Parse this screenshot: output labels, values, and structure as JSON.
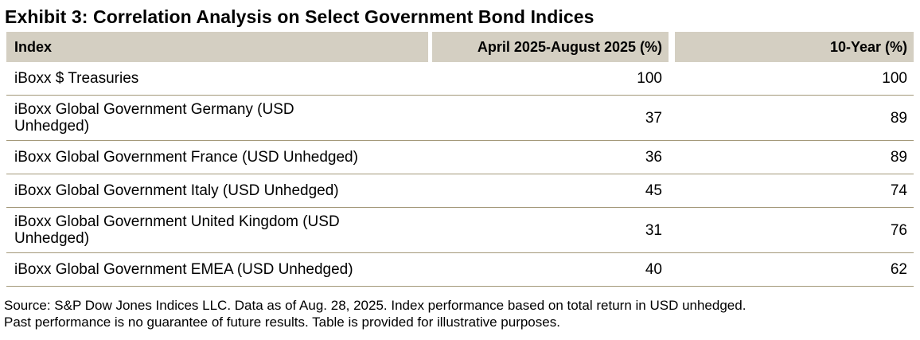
{
  "title": "Exhibit 3: Correlation Analysis on Select Government Bond Indices",
  "table": {
    "columns": [
      {
        "label": "Index"
      },
      {
        "label": "April 2025-August 2025 (%)"
      },
      {
        "label": "10-Year (%)"
      }
    ],
    "rows": [
      {
        "index": "iBoxx $ Treasuries",
        "apr_aug_2025": "100",
        "ten_year": "100"
      },
      {
        "index": "iBoxx Global Government Germany (USD\nUnhedged)",
        "apr_aug_2025": "37",
        "ten_year": "89"
      },
      {
        "index": "iBoxx Global Government France (USD Unhedged)",
        "apr_aug_2025": "36",
        "ten_year": "89"
      },
      {
        "index": "iBoxx Global Government Italy (USD Unhedged)",
        "apr_aug_2025": "45",
        "ten_year": "74"
      },
      {
        "index": "iBoxx Global Government United Kingdom (USD\nUnhedged)",
        "apr_aug_2025": "31",
        "ten_year": "76"
      },
      {
        "index": "iBoxx Global Government EMEA (USD Unhedged)",
        "apr_aug_2025": "40",
        "ten_year": "62"
      }
    ]
  },
  "footnote": {
    "line1": "Source: S&P Dow Jones Indices LLC. Data as of Aug. 28, 2025. Index performance based on total return in USD unhedged.",
    "line2": "Past performance is no guarantee of future results. Table is provided for illustrative purposes."
  },
  "colors": {
    "header_background": "#d4cfc2",
    "row_separator": "#a39879",
    "text": "#000000",
    "background": "#ffffff"
  },
  "chart_data": {
    "type": "table",
    "title": "Exhibit 3: Correlation Analysis on Select Government Bond Indices",
    "columns": [
      "Index",
      "April 2025-August 2025 (%)",
      "10-Year (%)"
    ],
    "rows": [
      [
        "iBoxx $ Treasuries",
        100,
        100
      ],
      [
        "iBoxx Global Government Germany (USD Unhedged)",
        37,
        89
      ],
      [
        "iBoxx Global Government France (USD Unhedged)",
        36,
        89
      ],
      [
        "iBoxx Global Government Italy (USD Unhedged)",
        45,
        74
      ],
      [
        "iBoxx Global Government United Kingdom (USD Unhedged)",
        31,
        76
      ],
      [
        "iBoxx Global Government EMEA (USD Unhedged)",
        40,
        62
      ]
    ]
  }
}
